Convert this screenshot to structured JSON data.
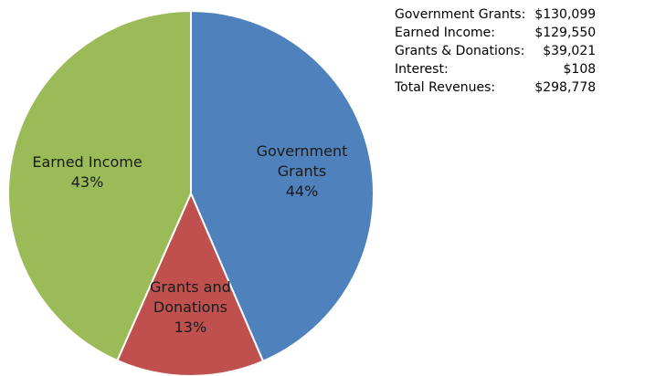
{
  "chart_data": {
    "type": "pie",
    "title": "",
    "slices": [
      {
        "label_lines": [
          "Government",
          "Grants"
        ],
        "pct_label": "44%",
        "value": 130099,
        "color": "#4F81BD"
      },
      {
        "label_lines": [
          "Grants and",
          "Donations"
        ],
        "pct_label": "13%",
        "value": 39021,
        "color": "#C0504D"
      },
      {
        "label_lines": [
          "Earned Income"
        ],
        "pct_label": "43%",
        "value": 129658,
        "color": "#9BBB59"
      }
    ]
  },
  "summary": {
    "rows": [
      {
        "label": "Government Grants:",
        "value": "$130,099"
      },
      {
        "label": "Earned Income:",
        "value": "$129,550"
      },
      {
        "label": "Grants & Donations:",
        "value": "$39,021"
      },
      {
        "label": "Interest:",
        "value": "$108"
      },
      {
        "label": "Total Revenues:",
        "value": "$298,778"
      }
    ]
  }
}
